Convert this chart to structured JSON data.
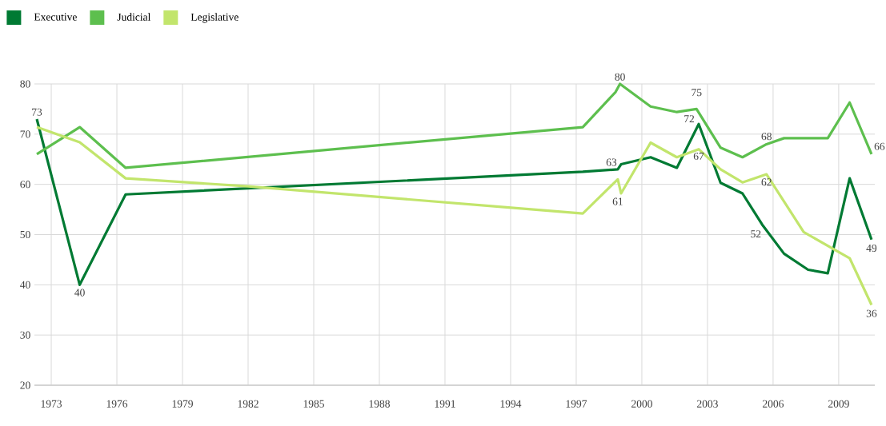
{
  "chart_data": {
    "type": "line",
    "series": [
      {
        "name": "Executive",
        "color": "#007a33",
        "x": [
          1972.34,
          1974.3,
          1976.4,
          1997.3,
          1998.9,
          1999.05,
          2000.4,
          2001.6,
          2002.6,
          2003.6,
          2004.6,
          2005.5,
          2006.5,
          2007.6,
          2008.5,
          2009.5,
          2010.5
        ],
        "values": [
          73,
          40,
          58,
          62.5,
          63,
          64,
          65.4,
          63.3,
          72,
          60.3,
          58.2,
          52,
          46.2,
          43,
          42.3,
          61.2,
          49
        ]
      },
      {
        "name": "Judicial",
        "color": "#5dbf4e",
        "x": [
          1972.34,
          1974.3,
          1976.4,
          1997.3,
          1998.8,
          1999.0,
          2000.4,
          2001.6,
          2002.5,
          2003.6,
          2004.6,
          2005.7,
          2006.5,
          2008.5,
          2009.5,
          2010.5
        ],
        "values": [
          66,
          71.4,
          63.3,
          71.4,
          78.4,
          80,
          75.5,
          74.4,
          75,
          67.3,
          65.4,
          68,
          69.2,
          69.2,
          76.3,
          66
        ]
      },
      {
        "name": "Legislative",
        "color": "#c2e56c",
        "x": [
          1972.34,
          1974.3,
          1976.4,
          1982,
          1997.3,
          1998.9,
          1999.05,
          2000.4,
          2001.6,
          2002.6,
          2003.6,
          2004.6,
          2005.7,
          2007.4,
          2009.5,
          2010.5
        ],
        "values": [
          71.4,
          68.4,
          61.2,
          59.6,
          54.2,
          61,
          58.2,
          68.3,
          65.4,
          67,
          63,
          60.4,
          62,
          50.5,
          45.3,
          36
        ]
      }
    ],
    "annotations": [
      {
        "text": "73",
        "x": 1972.34,
        "y": 73
      },
      {
        "text": "40",
        "x": 1974.3,
        "y": 40
      },
      {
        "text": "63",
        "x": 1998.9,
        "y": 63
      },
      {
        "text": "80",
        "x": 1999.0,
        "y": 80
      },
      {
        "text": "61",
        "x": 1998.9,
        "y": 61
      },
      {
        "text": "75",
        "x": 2002.5,
        "y": 75
      },
      {
        "text": "72",
        "x": 2002.6,
        "y": 72
      },
      {
        "text": "67",
        "x": 2002.6,
        "y": 67
      },
      {
        "text": "68",
        "x": 2005.7,
        "y": 68
      },
      {
        "text": "62",
        "x": 2005.7,
        "y": 62
      },
      {
        "text": "52",
        "x": 2005.5,
        "y": 52
      },
      {
        "text": "66",
        "x": 2010.5,
        "y": 66
      },
      {
        "text": "49",
        "x": 2010.5,
        "y": 49
      },
      {
        "text": "36",
        "x": 2010.5,
        "y": 36
      }
    ],
    "xlim": [
      1972.23,
      2010.65
    ],
    "ylim": [
      20,
      80
    ],
    "xticks": [
      1973,
      1976,
      1979,
      1982,
      1985,
      1988,
      1991,
      1994,
      1997,
      2000,
      2003,
      2006,
      2009
    ],
    "yticks": [
      20,
      30,
      40,
      50,
      60,
      70,
      80
    ],
    "grid": true,
    "legend": "top left",
    "marker": "none",
    "line_style": "solid"
  }
}
